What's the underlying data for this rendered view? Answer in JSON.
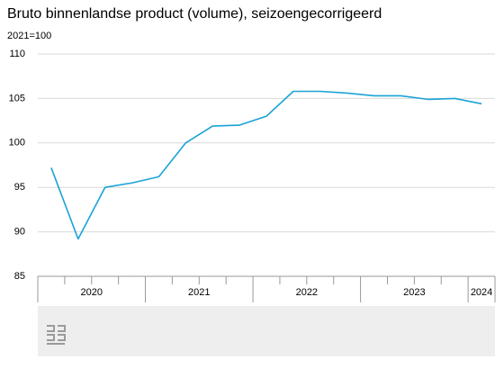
{
  "chart_data": {
    "type": "line",
    "title": "Bruto binnenlandse product (volume), seizoengecorrigeerd",
    "subtitle": "2021=100",
    "categories": [
      "2020",
      null,
      null,
      null,
      "2021",
      null,
      null,
      null,
      "2022",
      null,
      null,
      null,
      "2023",
      null,
      null,
      null,
      "2024"
    ],
    "values": [
      97.2,
      89.2,
      95.0,
      95.5,
      96.2,
      100.0,
      101.9,
      102.0,
      103.0,
      105.8,
      105.8,
      105.6,
      105.3,
      105.3,
      104.9,
      105.0,
      104.4
    ],
    "color": "#1aa3d6",
    "ylim": [
      85,
      110
    ],
    "yticks": [
      85,
      90,
      95,
      100,
      105,
      110
    ],
    "grid": true
  }
}
